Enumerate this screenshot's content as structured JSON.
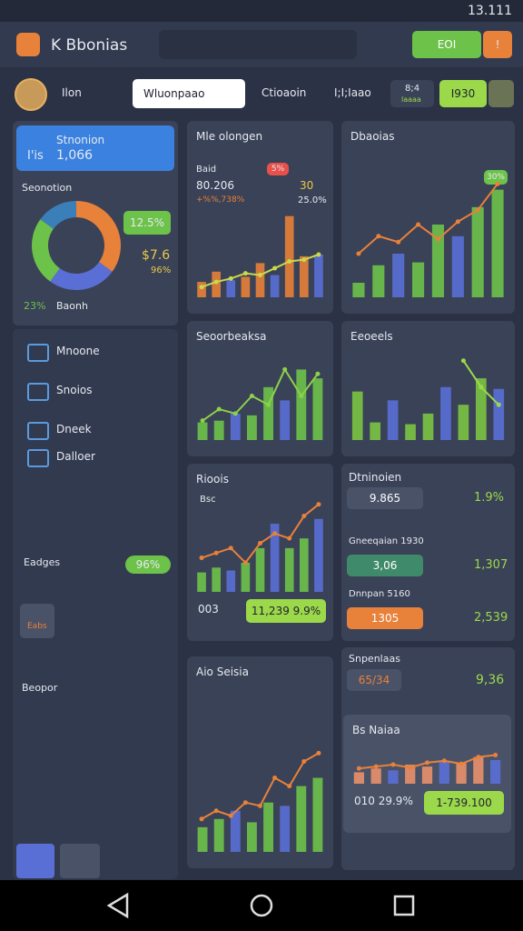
{
  "status_bar": {
    "time": "13.111"
  },
  "header": {
    "title": "K Bbonias",
    "button": "EOI",
    "badge": "!"
  },
  "toolbar": {
    "user": "Ilon",
    "dropdown": "Wluonpaao",
    "tab": "Ctioaoin",
    "value": "I;I;Iaao",
    "stat": "8;4",
    "stat_sub": "laaaa",
    "button": "I930"
  },
  "sidebar": {
    "card": {
      "title": "Stnonion",
      "prefix": "I'is",
      "value": "1,066"
    },
    "section": {
      "title": "Seonotion",
      "percent": "12.5%",
      "amount": "$7.6",
      "share": "96%",
      "footer_value": "23%",
      "footer_label": "Baonh",
      "donut": {
        "values": [
          35,
          25,
          25,
          15
        ],
        "colors": [
          "#e8813a",
          "#5a6fd6",
          "#6dc24a",
          "#3b7fb8"
        ]
      }
    },
    "menu": [
      "Mnoone",
      "Snoios",
      "Dneek",
      "Dalloer"
    ],
    "badges": {
      "label": "Eadges",
      "value": "96%"
    },
    "tabs": [
      "Eabs",
      "Beopor"
    ]
  },
  "cards": {
    "c1": {
      "title": "Mle olongen",
      "label": "Baid",
      "value": "80.206",
      "delta": "+%%,738%",
      "top": "5%",
      "right1": "30",
      "right2": "25.0%",
      "ylim": [
        0,
        100
      ],
      "bars": {
        "color": "#e8813a",
        "values": [
          18,
          30,
          20,
          24,
          40,
          26,
          95,
          48,
          50
        ]
      },
      "line": {
        "color": "#c8d94a",
        "values": [
          12,
          18,
          22,
          28,
          26,
          34,
          42,
          44,
          50
        ]
      }
    },
    "c2": {
      "title": "Dbaoias",
      "badge": "30%",
      "ylim": [
        0,
        100
      ],
      "bars": {
        "color": "#6dc24a",
        "values": [
          10,
          22,
          30,
          24,
          50,
          42,
          62,
          74
        ]
      },
      "line": {
        "color": "#e8813a",
        "values": [
          30,
          42,
          38,
          50,
          40,
          52,
          60,
          78
        ]
      }
    },
    "c3": {
      "title": "Seoorbeaksa",
      "ylim": [
        0,
        100
      ],
      "bars": {
        "color": "#6dc24a",
        "values": [
          20,
          22,
          30,
          28,
          60,
          45,
          80,
          70
        ]
      },
      "line": {
        "color": "#8ed04a",
        "values": [
          22,
          35,
          30,
          50,
          40,
          80,
          50,
          75
        ]
      }
    },
    "c4": {
      "title": "Eeoeels",
      "ylim": [
        0,
        100
      ],
      "bars": {
        "color": "#7cc442",
        "values": [
          55,
          20,
          45,
          18,
          30,
          60,
          40,
          70,
          58
        ]
      },
      "line": {
        "color": "#9cd94a",
        "values": [
          null,
          null,
          null,
          null,
          null,
          null,
          90,
          60,
          40
        ]
      }
    },
    "c5": {
      "title": "Rioois",
      "sub": "Bsc",
      "ylim": [
        0,
        100
      ],
      "bars": {
        "color": "#6dc24a",
        "values": [
          20,
          25,
          22,
          30,
          45,
          70,
          45,
          55,
          75
        ]
      },
      "line": {
        "color": "#e8813a",
        "values": [
          35,
          40,
          45,
          30,
          50,
          60,
          55,
          78,
          90
        ]
      },
      "footer": "003",
      "footer_pill": "11,239 9.9%"
    },
    "c6": {
      "title": "Aio Seisia",
      "ylim": [
        0,
        100
      ],
      "bars": {
        "color": "#6dc24a",
        "values": [
          15,
          20,
          25,
          18,
          30,
          28,
          40,
          45
        ]
      },
      "line": {
        "color": "#e8813a",
        "values": [
          20,
          25,
          22,
          30,
          28,
          45,
          40,
          55,
          60
        ]
      }
    },
    "c7": {
      "title": "Bs Naiaa",
      "ylim": [
        0,
        100
      ],
      "bars": {
        "color": "#e8906a",
        "values": [
          30,
          40,
          35,
          50,
          45,
          60,
          55,
          70,
          62
        ]
      },
      "line": {
        "color": "#e8813a",
        "values": [
          40,
          45,
          50,
          42,
          55,
          60,
          52,
          70,
          75
        ]
      },
      "footer": "010 29.9%",
      "footer_pill": "1-739.100"
    }
  },
  "list": {
    "title": "Dtninoien",
    "rows": [
      {
        "label": "",
        "value": "9.865",
        "right": "1.9%"
      },
      {
        "label": "Gneeqaian 1930",
        "value": "3,06",
        "right": "1,307"
      },
      {
        "label": "Dnnpan 5160",
        "value": "1305",
        "right": "2,539"
      }
    ]
  },
  "summary": {
    "title": "Snpenlaas",
    "left": "65/34",
    "right": "9,36"
  }
}
